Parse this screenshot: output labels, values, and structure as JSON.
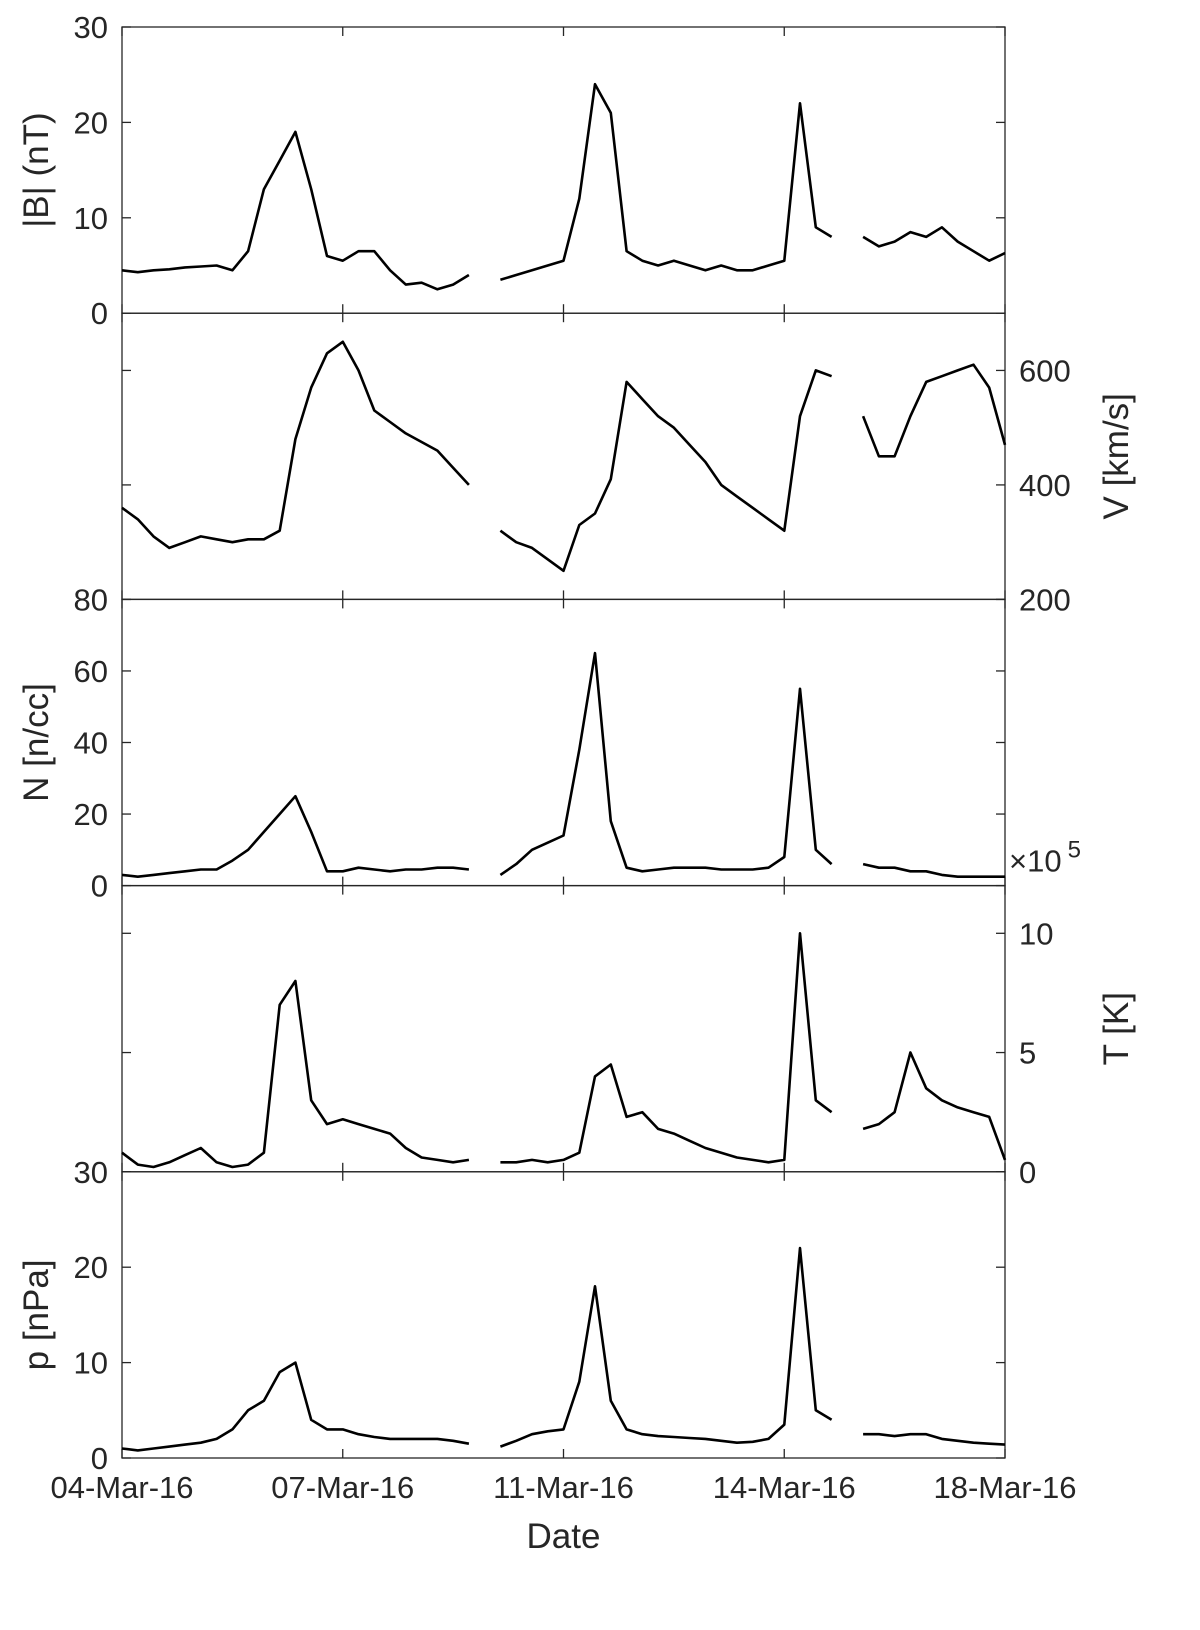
{
  "chart_data": [
    {
      "type": "line",
      "ylabel": "|B| (nT)",
      "yaxis": "left",
      "ylim": [
        0,
        30
      ],
      "yticks": [
        0,
        10,
        20,
        30
      ],
      "x": [
        4,
        4.25,
        4.5,
        4.75,
        5,
        5.25,
        5.5,
        5.75,
        6,
        6.25,
        6.5,
        6.75,
        7,
        7.25,
        7.5,
        7.75,
        8,
        8.25,
        8.5,
        8.75,
        9,
        9.25,
        9.5,
        9.75,
        10,
        10.25,
        10.5,
        10.75,
        11,
        11.25,
        11.5,
        11.75,
        12,
        12.25,
        12.5,
        12.75,
        13,
        13.25,
        13.5,
        13.75,
        14,
        14.25,
        14.5,
        14.75,
        15,
        15.25,
        15.5,
        15.75,
        16,
        16.25,
        16.5,
        16.75,
        17,
        17.25,
        17.5,
        17.75,
        18
      ],
      "series": [
        {
          "color": "#000000",
          "values": [
            4.5,
            4.3,
            4.5,
            4.6,
            4.8,
            4.9,
            5,
            4.5,
            6.5,
            13,
            16,
            19,
            13,
            6,
            5.5,
            6.5,
            6.5,
            4.5,
            3,
            3.2,
            2.5,
            3,
            4,
            null,
            3.5,
            4,
            4.5,
            5,
            5.5,
            12,
            24,
            21,
            6.5,
            5.5,
            5,
            5.5,
            5,
            4.5,
            5,
            4.5,
            4.5,
            5,
            5.5,
            22,
            9,
            8,
            null,
            8,
            7,
            7.5,
            8.5,
            8,
            9,
            7.5,
            6.5,
            5.5,
            6.3
          ]
        }
      ]
    },
    {
      "type": "line",
      "ylabel": "V [km/s]",
      "yaxis": "right",
      "ylim": [
        200,
        700
      ],
      "yticks": [
        200,
        400,
        600
      ],
      "x": [
        4,
        4.25,
        4.5,
        4.75,
        5,
        5.25,
        5.5,
        5.75,
        6,
        6.25,
        6.5,
        6.75,
        7,
        7.25,
        7.5,
        7.75,
        8,
        8.25,
        8.5,
        8.75,
        9,
        9.25,
        9.5,
        9.75,
        10,
        10.25,
        10.5,
        10.75,
        11,
        11.25,
        11.5,
        11.75,
        12,
        12.25,
        12.5,
        12.75,
        13,
        13.25,
        13.5,
        13.75,
        14,
        14.25,
        14.5,
        14.75,
        15,
        15.25,
        15.5,
        15.75,
        16,
        16.25,
        16.5,
        16.75,
        17,
        17.25,
        17.5,
        17.75,
        18
      ],
      "series": [
        {
          "color": "#000000",
          "values": [
            360,
            340,
            310,
            290,
            300,
            310,
            305,
            300,
            305,
            305,
            320,
            480,
            570,
            630,
            650,
            600,
            530,
            510,
            490,
            475,
            460,
            430,
            400,
            null,
            320,
            300,
            290,
            270,
            250,
            330,
            350,
            410,
            580,
            550,
            520,
            500,
            470,
            440,
            400,
            380,
            360,
            340,
            320,
            520,
            600,
            590,
            null,
            520,
            450,
            450,
            520,
            580,
            590,
            600,
            610,
            570,
            470
          ]
        }
      ]
    },
    {
      "type": "line",
      "ylabel": "N [n/cc]",
      "yaxis": "left",
      "ylim": [
        0,
        80
      ],
      "yticks": [
        0,
        20,
        40,
        60,
        80
      ],
      "x": [
        4,
        4.25,
        4.5,
        4.75,
        5,
        5.25,
        5.5,
        5.75,
        6,
        6.25,
        6.5,
        6.75,
        7,
        7.25,
        7.5,
        7.75,
        8,
        8.25,
        8.5,
        8.75,
        9,
        9.25,
        9.5,
        9.75,
        10,
        10.25,
        10.5,
        10.75,
        11,
        11.25,
        11.5,
        11.75,
        12,
        12.25,
        12.5,
        12.75,
        13,
        13.25,
        13.5,
        13.75,
        14,
        14.25,
        14.5,
        14.75,
        15,
        15.25,
        15.5,
        15.75,
        16,
        16.25,
        16.5,
        16.75,
        17,
        17.25,
        17.5,
        17.75,
        18
      ],
      "series": [
        {
          "color": "#000000",
          "values": [
            3,
            2.5,
            3,
            3.5,
            4,
            4.5,
            4.5,
            7,
            10,
            15,
            20,
            25,
            15,
            4,
            4,
            5,
            4.5,
            4,
            4.5,
            4.5,
            5,
            5,
            4.5,
            null,
            3,
            6,
            10,
            12,
            14,
            38,
            65,
            18,
            5,
            4,
            4.5,
            5,
            5,
            5,
            4.5,
            4.5,
            4.5,
            5,
            8,
            55,
            10,
            6,
            null,
            6,
            5,
            5,
            4,
            4,
            3,
            2.5,
            2.5,
            2.5,
            2.5
          ]
        }
      ]
    },
    {
      "type": "line",
      "ylabel": "T [K]",
      "yaxis": "right",
      "y_multiplier_base": "×10",
      "y_multiplier_exponent": 5,
      "ylim": [
        0,
        12
      ],
      "yticks": [
        0,
        5,
        10
      ],
      "x": [
        4,
        4.25,
        4.5,
        4.75,
        5,
        5.25,
        5.5,
        5.75,
        6,
        6.25,
        6.5,
        6.75,
        7,
        7.25,
        7.5,
        7.75,
        8,
        8.25,
        8.5,
        8.75,
        9,
        9.25,
        9.5,
        9.75,
        10,
        10.25,
        10.5,
        10.75,
        11,
        11.25,
        11.5,
        11.75,
        12,
        12.25,
        12.5,
        12.75,
        13,
        13.25,
        13.5,
        13.75,
        14,
        14.25,
        14.5,
        14.75,
        15,
        15.25,
        15.5,
        15.75,
        16,
        16.25,
        16.5,
        16.75,
        17,
        17.25,
        17.5,
        17.75,
        18
      ],
      "series": [
        {
          "color": "#000000",
          "values": [
            0.8,
            0.3,
            0.2,
            0.4,
            0.7,
            1,
            0.4,
            0.2,
            0.3,
            0.8,
            7,
            8,
            3,
            2,
            2.2,
            2,
            1.8,
            1.6,
            1,
            0.6,
            0.5,
            0.4,
            0.5,
            null,
            0.4,
            0.4,
            0.5,
            0.4,
            0.5,
            0.8,
            4,
            4.5,
            2.3,
            2.5,
            1.8,
            1.6,
            1.3,
            1,
            0.8,
            0.6,
            0.5,
            0.4,
            0.5,
            10,
            3,
            2.5,
            null,
            1.8,
            2,
            2.5,
            5,
            3.5,
            3,
            2.7,
            2.5,
            2.3,
            0.5
          ]
        }
      ]
    },
    {
      "type": "line",
      "ylabel": "p [nPa]",
      "yaxis": "left",
      "ylim": [
        0,
        30
      ],
      "yticks": [
        0,
        10,
        20,
        30
      ],
      "xlabel": "Date",
      "xlim": [
        4,
        18
      ],
      "xticks": [
        {
          "value": 4,
          "label": "04-Mar-16"
        },
        {
          "value": 7.5,
          "label": "07-Mar-16"
        },
        {
          "value": 11,
          "label": "11-Mar-16"
        },
        {
          "value": 14.5,
          "label": "14-Mar-16"
        },
        {
          "value": 18,
          "label": "18-Mar-16"
        }
      ],
      "x": [
        4,
        4.25,
        4.5,
        4.75,
        5,
        5.25,
        5.5,
        5.75,
        6,
        6.25,
        6.5,
        6.75,
        7,
        7.25,
        7.5,
        7.75,
        8,
        8.25,
        8.5,
        8.75,
        9,
        9.25,
        9.5,
        9.75,
        10,
        10.25,
        10.5,
        10.75,
        11,
        11.25,
        11.5,
        11.75,
        12,
        12.25,
        12.5,
        12.75,
        13,
        13.25,
        13.5,
        13.75,
        14,
        14.25,
        14.5,
        14.75,
        15,
        15.25,
        15.5,
        15.75,
        16,
        16.25,
        16.5,
        16.75,
        17,
        17.25,
        17.5,
        17.75,
        18
      ],
      "series": [
        {
          "color": "#000000",
          "values": [
            1,
            0.8,
            1,
            1.2,
            1.4,
            1.6,
            2,
            3,
            5,
            6,
            9,
            10,
            4,
            3,
            3,
            2.5,
            2.2,
            2,
            2,
            2,
            2,
            1.8,
            1.5,
            null,
            1.2,
            1.8,
            2.5,
            2.8,
            3,
            8,
            18,
            6,
            3,
            2.5,
            2.3,
            2.2,
            2.1,
            2,
            1.8,
            1.6,
            1.7,
            2,
            3.5,
            22,
            5,
            4,
            null,
            2.5,
            2.5,
            2.3,
            2.5,
            2.5,
            2,
            1.8,
            1.6,
            1.5,
            1.4
          ]
        }
      ]
    }
  ]
}
